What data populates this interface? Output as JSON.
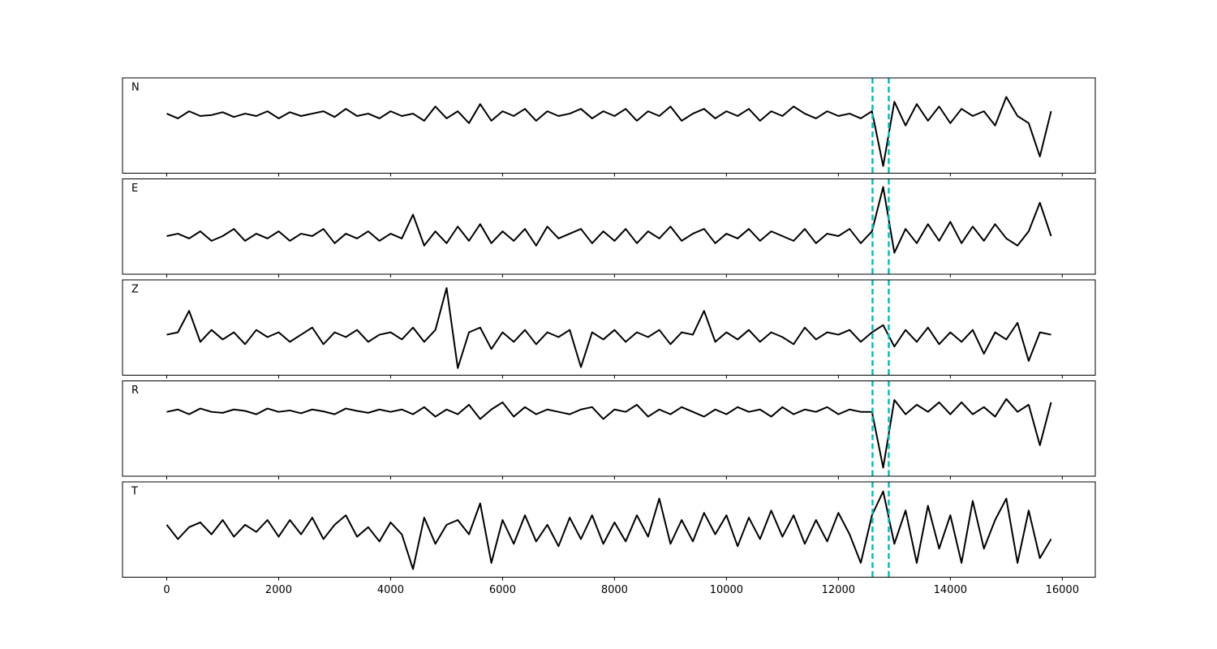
{
  "chart_data": [
    {
      "type": "line",
      "label": "N",
      "color": "#000000",
      "vlines": [
        12610,
        12900
      ],
      "vline_color": "#00bfbf",
      "x": [
        0,
        200,
        400,
        600,
        800,
        1000,
        1200,
        1400,
        1600,
        1800,
        2000,
        2200,
        2400,
        2600,
        2800,
        3000,
        3200,
        3400,
        3600,
        3800,
        4000,
        4200,
        4400,
        4600,
        4800,
        5000,
        5200,
        5400,
        5600,
        5800,
        6000,
        6200,
        6400,
        6600,
        6800,
        7000,
        7200,
        7400,
        7600,
        7800,
        8000,
        8200,
        8400,
        8600,
        8800,
        9000,
        9200,
        9400,
        9600,
        9800,
        10000,
        10200,
        10400,
        10600,
        10800,
        11000,
        11200,
        11400,
        11600,
        11800,
        12000,
        12200,
        12400,
        12600,
        12800,
        13000,
        13200,
        13400,
        13600,
        13800,
        14000,
        14200,
        14400,
        14600,
        14800,
        15000,
        15200,
        15400,
        15600,
        15800
      ],
      "values": [
        0.25,
        0.15,
        0.3,
        0.2,
        0.22,
        0.28,
        0.18,
        0.25,
        0.2,
        0.3,
        0.15,
        0.28,
        0.2,
        0.25,
        0.3,
        0.18,
        0.35,
        0.2,
        0.25,
        0.15,
        0.3,
        0.2,
        0.25,
        0.1,
        0.4,
        0.15,
        0.3,
        0.05,
        0.45,
        0.1,
        0.3,
        0.2,
        0.35,
        0.1,
        0.3,
        0.2,
        0.25,
        0.35,
        0.15,
        0.3,
        0.2,
        0.35,
        0.1,
        0.3,
        0.2,
        0.4,
        0.1,
        0.25,
        0.35,
        0.15,
        0.3,
        0.2,
        0.35,
        0.1,
        0.3,
        0.2,
        0.4,
        0.25,
        0.15,
        0.3,
        0.2,
        0.25,
        0.15,
        0.3,
        -0.85,
        0.5,
        0.0,
        0.45,
        0.1,
        0.4,
        0.05,
        0.35,
        0.2,
        0.3,
        0.0,
        0.6,
        0.2,
        0.05,
        -0.65,
        0.3
      ],
      "xlim": [
        -790,
        16590
      ],
      "ylim": [
        -1,
        1
      ],
      "xticks": [
        0,
        2000,
        4000,
        6000,
        8000,
        10000,
        12000,
        14000,
        16000
      ],
      "xtick_labels": false
    },
    {
      "type": "line",
      "label": "E",
      "color": "#000000",
      "vlines": [
        12610,
        12900
      ],
      "vline_color": "#00bfbf",
      "x": [
        0,
        200,
        400,
        600,
        800,
        1000,
        1200,
        1400,
        1600,
        1800,
        2000,
        2200,
        2400,
        2600,
        2800,
        3000,
        3200,
        3400,
        3600,
        3800,
        4000,
        4200,
        4400,
        4600,
        4800,
        5000,
        5200,
        5400,
        5600,
        5800,
        6000,
        6200,
        6400,
        6600,
        6800,
        7000,
        7200,
        7400,
        7600,
        7800,
        8000,
        8200,
        8400,
        8600,
        8800,
        9000,
        9200,
        9400,
        9600,
        9800,
        10000,
        10200,
        10400,
        10600,
        10800,
        11000,
        11200,
        11400,
        11600,
        11800,
        12000,
        12200,
        12400,
        12600,
        12800,
        13000,
        13200,
        13400,
        13600,
        13800,
        14000,
        14200,
        14400,
        14600,
        14800,
        15000,
        15200,
        15400,
        15600,
        15800
      ],
      "values": [
        -0.2,
        -0.15,
        -0.25,
        -0.1,
        -0.3,
        -0.2,
        -0.05,
        -0.3,
        -0.15,
        -0.25,
        -0.1,
        -0.3,
        -0.15,
        -0.2,
        -0.05,
        -0.35,
        -0.15,
        -0.25,
        -0.1,
        -0.3,
        -0.15,
        -0.25,
        0.25,
        -0.4,
        -0.1,
        -0.35,
        0.0,
        -0.3,
        0.05,
        -0.35,
        -0.1,
        -0.3,
        -0.05,
        -0.4,
        0.0,
        -0.25,
        -0.15,
        -0.05,
        -0.35,
        -0.1,
        -0.3,
        -0.05,
        -0.35,
        -0.1,
        -0.25,
        0.0,
        -0.3,
        -0.15,
        -0.05,
        -0.35,
        -0.15,
        -0.25,
        -0.05,
        -0.3,
        -0.1,
        -0.2,
        -0.3,
        -0.05,
        -0.35,
        -0.15,
        -0.2,
        -0.05,
        -0.35,
        -0.1,
        0.83,
        -0.55,
        -0.05,
        -0.35,
        0.05,
        -0.3,
        0.1,
        -0.35,
        0.0,
        -0.3,
        0.05,
        -0.25,
        -0.4,
        -0.1,
        0.5,
        -0.2
      ],
      "xlim": [
        -790,
        16590
      ],
      "ylim": [
        -1,
        1
      ],
      "xticks": [
        0,
        2000,
        4000,
        6000,
        8000,
        10000,
        12000,
        14000,
        16000
      ],
      "xtick_labels": false
    },
    {
      "type": "line",
      "label": "Z",
      "color": "#000000",
      "vlines": [
        12610,
        12900
      ],
      "vline_color": "#00bfbf",
      "x": [
        0,
        200,
        400,
        600,
        800,
        1000,
        1200,
        1400,
        1600,
        1800,
        2000,
        2200,
        2400,
        2600,
        2800,
        3000,
        3200,
        3400,
        3600,
        3800,
        4000,
        4200,
        4400,
        4600,
        4800,
        5000,
        5200,
        5400,
        5600,
        5800,
        6000,
        6200,
        6400,
        6600,
        6800,
        7000,
        7200,
        7400,
        7600,
        7800,
        8000,
        8200,
        8400,
        8600,
        8800,
        9000,
        9200,
        9400,
        9600,
        9800,
        10000,
        10200,
        10400,
        10600,
        10800,
        11000,
        11200,
        11400,
        11600,
        11800,
        12000,
        12200,
        12400,
        12600,
        12800,
        13000,
        13200,
        13400,
        13600,
        13800,
        14000,
        14200,
        14400,
        14600,
        14800,
        15000,
        15200,
        15400,
        15600,
        15800
      ],
      "values": [
        -0.15,
        -0.1,
        0.35,
        -0.3,
        -0.05,
        -0.25,
        -0.1,
        -0.35,
        -0.05,
        -0.2,
        -0.1,
        -0.3,
        -0.15,
        0.0,
        -0.35,
        -0.1,
        -0.2,
        -0.05,
        -0.3,
        -0.15,
        -0.1,
        -0.25,
        0.0,
        -0.3,
        -0.05,
        0.83,
        -0.85,
        -0.1,
        0.0,
        -0.45,
        -0.1,
        -0.3,
        -0.05,
        -0.35,
        -0.1,
        -0.2,
        -0.05,
        -0.83,
        -0.1,
        -0.25,
        -0.05,
        -0.3,
        -0.1,
        -0.2,
        -0.05,
        -0.35,
        -0.1,
        -0.15,
        0.35,
        -0.3,
        -0.1,
        -0.25,
        -0.05,
        -0.3,
        -0.1,
        -0.2,
        -0.35,
        0.0,
        -0.25,
        -0.1,
        -0.15,
        -0.05,
        -0.3,
        -0.1,
        0.05,
        -0.4,
        -0.05,
        -0.3,
        0.0,
        -0.35,
        -0.1,
        -0.3,
        -0.05,
        -0.55,
        -0.1,
        -0.25,
        0.1,
        -0.7,
        -0.1,
        -0.15
      ],
      "xlim": [
        -790,
        16590
      ],
      "ylim": [
        -1,
        1
      ],
      "xticks": [
        0,
        2000,
        4000,
        6000,
        8000,
        10000,
        12000,
        14000,
        16000
      ],
      "xtick_labels": false
    },
    {
      "type": "line",
      "label": "R",
      "color": "#000000",
      "vlines": [
        12610,
        12900
      ],
      "vline_color": "#00bfbf",
      "x": [
        0,
        200,
        400,
        600,
        800,
        1000,
        1200,
        1400,
        1600,
        1800,
        2000,
        2200,
        2400,
        2600,
        2800,
        3000,
        3200,
        3400,
        3600,
        3800,
        4000,
        4200,
        4400,
        4600,
        4800,
        5000,
        5200,
        5400,
        5600,
        5800,
        6000,
        6200,
        6400,
        6600,
        6800,
        7000,
        7200,
        7400,
        7600,
        7800,
        8000,
        8200,
        8400,
        8600,
        8800,
        9000,
        9200,
        9400,
        9600,
        9800,
        10000,
        10200,
        10400,
        10600,
        10800,
        11000,
        11200,
        11400,
        11600,
        11800,
        12000,
        12200,
        12400,
        12600,
        12800,
        13000,
        13200,
        13400,
        13600,
        13800,
        14000,
        14200,
        14400,
        14600,
        14800,
        15000,
        15200,
        15400,
        15600,
        15800
      ],
      "values": [
        0.35,
        0.4,
        0.3,
        0.42,
        0.35,
        0.33,
        0.4,
        0.37,
        0.3,
        0.42,
        0.35,
        0.38,
        0.32,
        0.4,
        0.36,
        0.3,
        0.42,
        0.37,
        0.33,
        0.4,
        0.35,
        0.4,
        0.3,
        0.45,
        0.25,
        0.4,
        0.3,
        0.5,
        0.2,
        0.4,
        0.55,
        0.25,
        0.45,
        0.3,
        0.4,
        0.35,
        0.3,
        0.4,
        0.45,
        0.2,
        0.4,
        0.35,
        0.5,
        0.25,
        0.4,
        0.3,
        0.45,
        0.35,
        0.25,
        0.4,
        0.3,
        0.45,
        0.35,
        0.4,
        0.25,
        0.45,
        0.3,
        0.4,
        0.35,
        0.45,
        0.3,
        0.4,
        0.35,
        0.35,
        -0.82,
        0.6,
        0.3,
        0.5,
        0.35,
        0.55,
        0.3,
        0.55,
        0.3,
        0.45,
        0.25,
        0.62,
        0.35,
        0.5,
        -0.35,
        0.55
      ],
      "xlim": [
        -790,
        16590
      ],
      "ylim": [
        -1,
        1
      ],
      "xticks": [
        0,
        2000,
        4000,
        6000,
        8000,
        10000,
        12000,
        14000,
        16000
      ],
      "xtick_labels": false
    },
    {
      "type": "line",
      "label": "T",
      "color": "#000000",
      "vlines": [
        12610,
        12900
      ],
      "vline_color": "#00bfbf",
      "x": [
        0,
        200,
        400,
        600,
        800,
        1000,
        1200,
        1400,
        1600,
        1800,
        2000,
        2200,
        2400,
        2600,
        2800,
        3000,
        3200,
        3400,
        3600,
        3800,
        4000,
        4200,
        4400,
        4600,
        4800,
        5000,
        5200,
        5400,
        5600,
        5800,
        6000,
        6200,
        6400,
        6600,
        6800,
        7000,
        7200,
        7400,
        7600,
        7800,
        8000,
        8200,
        8400,
        8600,
        8800,
        9000,
        9200,
        9400,
        9600,
        9800,
        10000,
        10200,
        10400,
        10600,
        10800,
        11000,
        11200,
        11400,
        11600,
        11800,
        12000,
        12200,
        12400,
        12600,
        12800,
        13000,
        13200,
        13400,
        13600,
        13800,
        14000,
        14200,
        14400,
        14600,
        14800,
        15000,
        15200,
        15400,
        15600,
        15800
      ],
      "values": [
        0.1,
        -0.2,
        0.05,
        0.15,
        -0.1,
        0.2,
        -0.15,
        0.1,
        -0.05,
        0.2,
        -0.15,
        0.2,
        -0.1,
        0.25,
        -0.2,
        0.1,
        0.3,
        -0.15,
        0.05,
        -0.25,
        0.15,
        -0.1,
        -0.83,
        0.25,
        -0.3,
        0.1,
        0.2,
        -0.1,
        0.55,
        -0.7,
        0.2,
        -0.3,
        0.3,
        -0.25,
        0.1,
        -0.35,
        0.25,
        -0.2,
        0.3,
        -0.3,
        0.15,
        -0.25,
        0.3,
        -0.15,
        0.65,
        -0.3,
        0.2,
        -0.25,
        0.35,
        -0.1,
        0.3,
        -0.35,
        0.25,
        -0.2,
        0.4,
        -0.15,
        0.3,
        -0.3,
        0.2,
        -0.25,
        0.35,
        -0.1,
        -0.7,
        0.3,
        0.8,
        -0.3,
        0.4,
        -0.7,
        0.5,
        -0.4,
        0.3,
        -0.7,
        0.6,
        -0.4,
        0.2,
        0.65,
        -0.7,
        0.4,
        -0.6,
        -0.2
      ],
      "xlim": [
        -790,
        16590
      ],
      "ylim": [
        -1,
        1
      ],
      "xticks": [
        0,
        2000,
        4000,
        6000,
        8000,
        10000,
        12000,
        14000,
        16000
      ],
      "xtick_labels": true
    }
  ]
}
